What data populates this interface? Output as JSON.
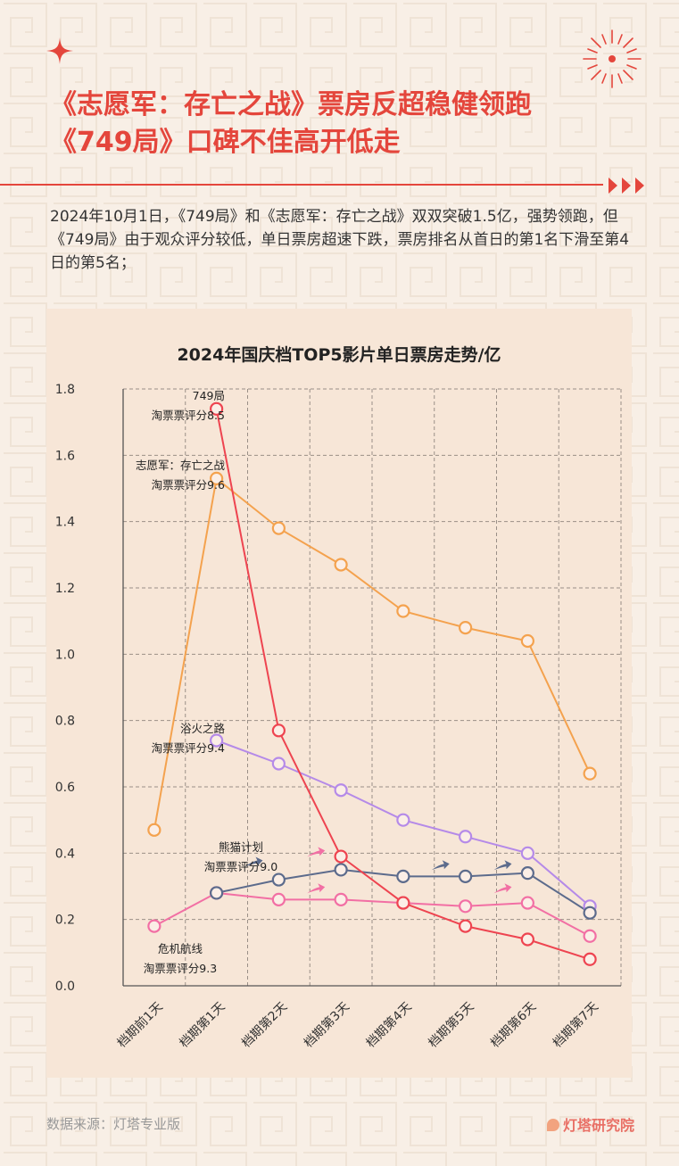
{
  "header": {
    "title_line1": "《志愿军：存亡之战》票房反超稳健领跑",
    "title_line2": "《749局》口碑不佳高开低走",
    "summary": "2024年10月1日，《749局》和《志愿军：存亡之战》双双突破1.5亿，强势领跑，但《749局》由于观众评分较低，单日票房超速下跌，票房排名从首日的第1名下滑至第4日的第5名；"
  },
  "colors": {
    "accent": "#e4463c",
    "background": "#f8efe6",
    "card": "#f7e6d7"
  },
  "chart_data": {
    "type": "line",
    "title": "2024年国庆档TOP5影片单日票房走势/亿",
    "categories": [
      "档期前1天",
      "档期第1天",
      "档期第2天",
      "档期第3天",
      "档期第4天",
      "档期第5天",
      "档期第6天",
      "档期第7天"
    ],
    "ylim": [
      0,
      1.8
    ],
    "yticks": [
      "0.0",
      "0.2",
      "0.4",
      "0.6",
      "0.8",
      "1.0",
      "1.2",
      "1.4",
      "1.6",
      "1.8"
    ],
    "grid": true,
    "series": [
      {
        "name": "749局",
        "rating": "淘票票评分8.5",
        "color": "#ee4450",
        "values": [
          null,
          1.74,
          0.77,
          0.39,
          0.25,
          0.18,
          0.14,
          0.08
        ]
      },
      {
        "name": "志愿军：存亡之战",
        "rating": "淘票票评分9.6",
        "color": "#f4a24e",
        "values": [
          0.47,
          1.53,
          1.38,
          1.27,
          1.13,
          1.08,
          1.04,
          0.64
        ]
      },
      {
        "name": "浴火之路",
        "rating": "淘票票评分9.4",
        "color": "#b58ae8",
        "values": [
          null,
          0.74,
          0.67,
          0.59,
          0.5,
          0.45,
          0.4,
          0.24
        ]
      },
      {
        "name": "熊猫计划",
        "rating": "淘票票评分9.0",
        "color": "#5c6b8c",
        "values": [
          null,
          0.28,
          0.32,
          0.35,
          0.33,
          0.33,
          0.34,
          0.22
        ]
      },
      {
        "name": "危机航线",
        "rating": "淘票票评分9.3",
        "color": "#f26fa4",
        "values": [
          0.18,
          0.28,
          0.26,
          0.26,
          0.25,
          0.24,
          0.25,
          0.15
        ]
      }
    ]
  },
  "footer": {
    "source": "数据来源：灯塔专业版",
    "brand": "灯塔研究院"
  }
}
